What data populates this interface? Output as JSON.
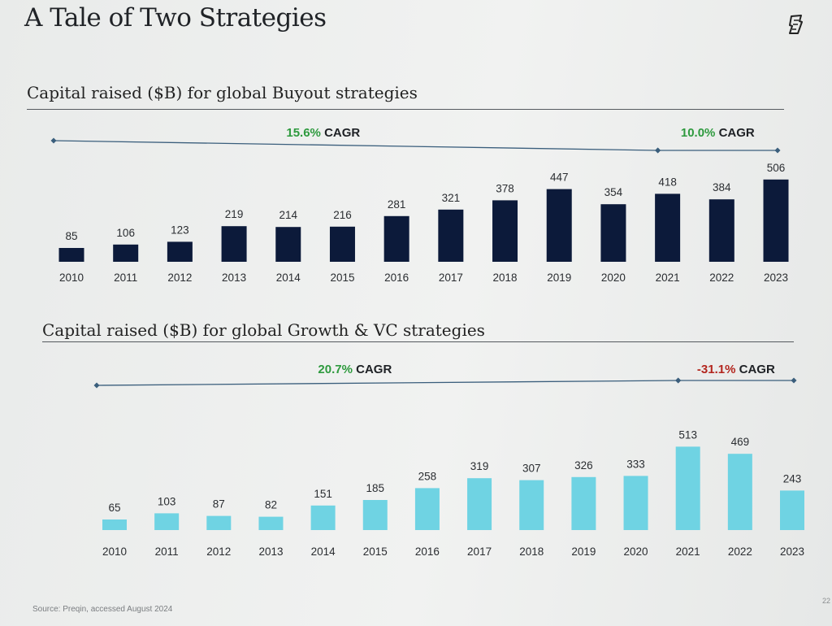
{
  "slide": {
    "title": "A Tale of Two Strategies",
    "footer_source": "Source: Preqin, accessed August 2024",
    "page_number": "22"
  },
  "colors": {
    "buyout_bar": "#0c1a3a",
    "growth_bar": "#6fd3e3",
    "positive_cagr": "#2e9a3e",
    "negative_cagr": "#b3261e",
    "cagr_line": "#3a5e7c"
  },
  "chart_data": [
    {
      "type": "bar",
      "title": "Capital raised ($B) for global Buyout strategies",
      "categories": [
        "2010",
        "2011",
        "2012",
        "2013",
        "2014",
        "2015",
        "2016",
        "2017",
        "2018",
        "2019",
        "2020",
        "2021",
        "2022",
        "2023"
      ],
      "values": [
        85,
        106,
        123,
        219,
        214,
        216,
        281,
        321,
        378,
        447,
        354,
        418,
        384,
        506
      ],
      "annotations": [
        {
          "value": "15.6%",
          "label": "CAGR",
          "from": "2010",
          "to": "2021",
          "sign": "positive"
        },
        {
          "value": "10.0%",
          "label": "CAGR",
          "from": "2021",
          "to": "2023",
          "sign": "positive"
        }
      ]
    },
    {
      "type": "bar",
      "title": "Capital raised ($B) for global Growth & VC strategies",
      "categories": [
        "2010",
        "2011",
        "2012",
        "2013",
        "2014",
        "2015",
        "2016",
        "2017",
        "2018",
        "2019",
        "2020",
        "2021",
        "2022",
        "2023"
      ],
      "values": [
        65,
        103,
        87,
        82,
        151,
        185,
        258,
        319,
        307,
        326,
        333,
        513,
        469,
        243
      ],
      "annotations": [
        {
          "value": "20.7%",
          "label": "CAGR",
          "from": "2010",
          "to": "2021",
          "sign": "positive"
        },
        {
          "value": "-31.1%",
          "label": "CAGR",
          "from": "2021",
          "to": "2023",
          "sign": "negative"
        }
      ]
    }
  ]
}
